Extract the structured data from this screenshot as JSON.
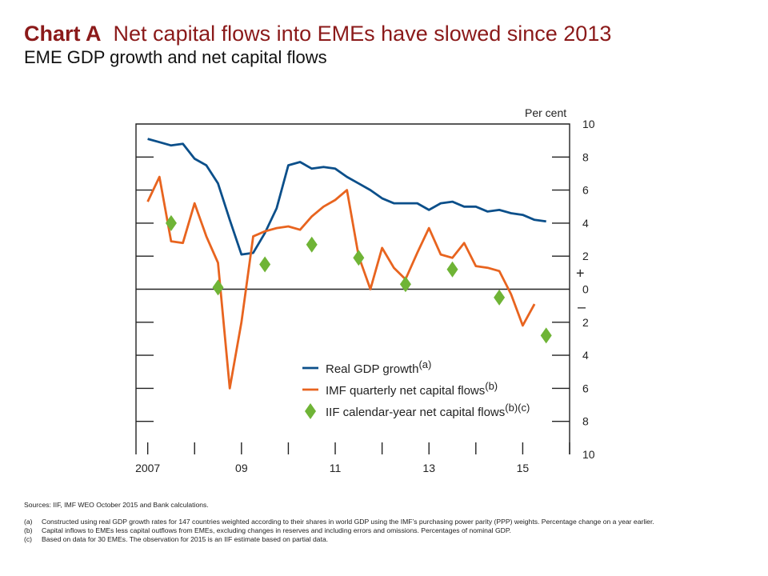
{
  "header": {
    "chart_label": "Chart A",
    "title_text": "Net capital flows into EMEs have slowed since 2013",
    "subtitle": "EME GDP growth and net capital flows"
  },
  "notes": {
    "sources": "Sources: IIF, IMF WEO October 2015 and Bank calculations.",
    "footnotes": [
      {
        "key": "(a)",
        "text": "Constructed using real GDP growth rates for 147 countries weighted according to their shares in world GDP using the IMF’s purchasing power parity (PPP) weights. Percentage change on a year earlier."
      },
      {
        "key": "(b)",
        "text": "Capital inflows to EMEs less capital outflows from EMEs, excluding changes in reserves and including errors and omissions. Percentages of nominal GDP."
      },
      {
        "key": "(c)",
        "text": "Based on data for 30 EMEs. The observation for 2015 is an IIF estimate based on partial data."
      }
    ]
  },
  "colors": {
    "gdp": "#0b4f8a",
    "imf": "#e8641f",
    "iif": "#6fb436",
    "title": "#8b1a1a"
  },
  "chart_data": {
    "type": "line",
    "ylabel": "Per cent",
    "ylim": [
      -10,
      10
    ],
    "yticks": [
      10,
      8,
      6,
      4,
      2,
      0,
      2,
      4,
      6,
      8,
      10
    ],
    "sign_labels": {
      "plus": "+",
      "minus": "–"
    },
    "xlim": [
      2006.75,
      2016.0
    ],
    "xticks": [
      2007,
      2008,
      2009,
      2010,
      2011,
      2012,
      2013,
      2014,
      2015,
      2016
    ],
    "xtick_labels": [
      {
        "x": 2007,
        "label": "2007"
      },
      {
        "x": 2009,
        "label": "09"
      },
      {
        "x": 2011,
        "label": "11"
      },
      {
        "x": 2013,
        "label": "13"
      },
      {
        "x": 2015,
        "label": "15"
      }
    ],
    "legend": {
      "placement": "bottom-right",
      "entries": [
        {
          "label": "Real GDP growth",
          "sup": "(a)",
          "marker": "line",
          "color": "#0b4f8a"
        },
        {
          "label": "IMF quarterly net capital flows",
          "sup": "(b)",
          "marker": "line",
          "color": "#e8641f"
        },
        {
          "label": "IIF calendar-year net capital flows",
          "sup": "(b)(c)",
          "marker": "diamond",
          "color": "#6fb436"
        }
      ]
    },
    "series": [
      {
        "name": "Real GDP growth",
        "x": [
          2007.0,
          2007.25,
          2007.5,
          2007.75,
          2008.0,
          2008.25,
          2008.5,
          2008.75,
          2009.0,
          2009.25,
          2009.5,
          2009.75,
          2010.0,
          2010.25,
          2010.5,
          2010.75,
          2011.0,
          2011.25,
          2011.5,
          2011.75,
          2012.0,
          2012.25,
          2012.5,
          2012.75,
          2013.0,
          2013.25,
          2013.5,
          2013.75,
          2014.0,
          2014.25,
          2014.5,
          2014.75,
          2015.0,
          2015.25,
          2015.5
        ],
        "values": [
          9.1,
          8.9,
          8.7,
          8.8,
          7.9,
          7.5,
          6.4,
          4.2,
          2.1,
          2.2,
          3.4,
          4.9,
          7.5,
          7.7,
          7.3,
          7.4,
          7.3,
          6.8,
          6.4,
          6.0,
          5.5,
          5.2,
          5.2,
          5.2,
          4.8,
          5.2,
          5.3,
          5.0,
          5.0,
          4.7,
          4.8,
          4.6,
          4.5,
          4.2,
          4.1
        ]
      },
      {
        "name": "IMF quarterly net capital flows",
        "x": [
          2007.0,
          2007.25,
          2007.5,
          2007.75,
          2008.0,
          2008.25,
          2008.5,
          2008.75,
          2009.0,
          2009.25,
          2009.5,
          2009.75,
          2010.0,
          2010.25,
          2010.5,
          2010.75,
          2011.0,
          2011.25,
          2011.5,
          2011.75,
          2012.0,
          2012.25,
          2012.5,
          2012.75,
          2013.0,
          2013.25,
          2013.5,
          2013.75,
          2014.0,
          2014.25,
          2014.5,
          2014.75,
          2015.0,
          2015.25
        ],
        "values": [
          5.3,
          6.8,
          2.9,
          2.8,
          5.2,
          3.2,
          1.6,
          -6.0,
          -2.0,
          3.2,
          3.5,
          3.7,
          3.8,
          3.6,
          4.4,
          5.0,
          5.4,
          6.0,
          2.0,
          0.0,
          2.5,
          1.3,
          0.6,
          2.2,
          3.7,
          2.1,
          1.9,
          2.8,
          1.4,
          1.3,
          1.1,
          -0.3,
          -2.2,
          -0.9
        ]
      },
      {
        "name": "IIF calendar-year net capital flows",
        "marker": "diamond",
        "x": [
          2007.5,
          2008.5,
          2009.5,
          2010.5,
          2011.5,
          2012.5,
          2013.5,
          2014.5,
          2015.5
        ],
        "values": [
          4.0,
          0.1,
          1.5,
          2.7,
          1.9,
          0.3,
          1.2,
          -0.5,
          -2.8
        ]
      }
    ]
  }
}
